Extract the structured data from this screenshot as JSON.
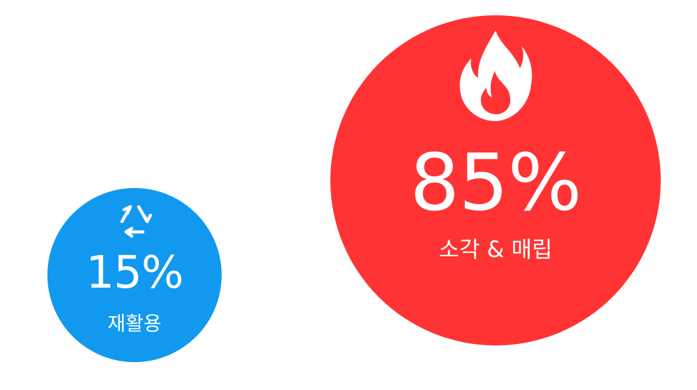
{
  "chart_data": {
    "type": "bubble",
    "title": "",
    "items": [
      {
        "key": "recycle",
        "value": 15,
        "value_text": "15%",
        "label": "재활용",
        "color": "#1199F0",
        "icon": "recycle-icon"
      },
      {
        "key": "incinerate",
        "value": 85,
        "value_text": "85%",
        "label": "소각 & 매립",
        "color": "#FF3333",
        "icon": "fire-icon"
      }
    ]
  }
}
